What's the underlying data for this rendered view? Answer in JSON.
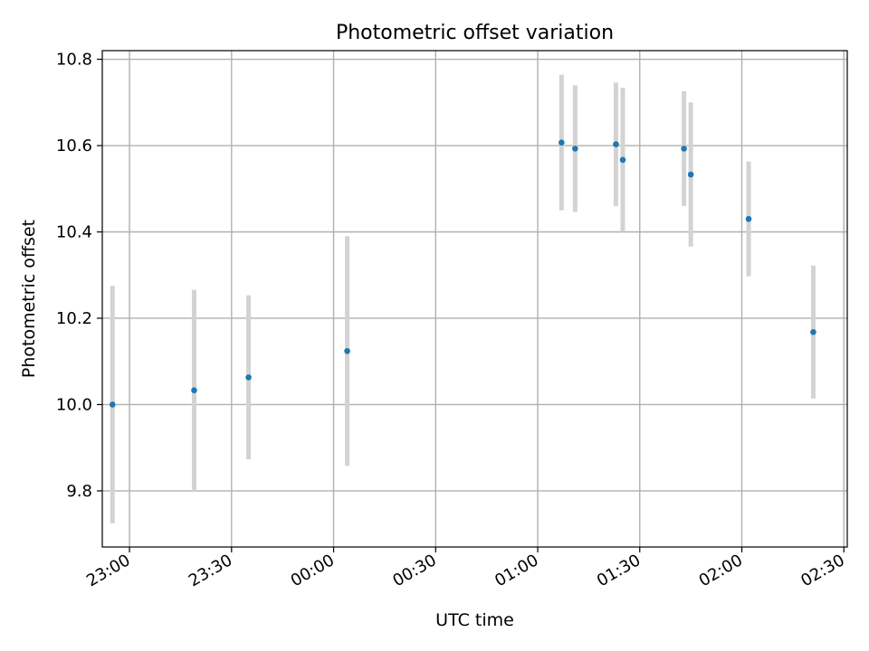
{
  "chart_data": {
    "type": "scatter",
    "title": "Photometric offset variation",
    "xlabel": "UTC time",
    "ylabel": "Photometric offset",
    "x_unit": "time of day (UTC), timestamps crossing midnight",
    "xlim": [
      "22:52",
      "02:31 next day"
    ],
    "ylim": [
      9.67,
      10.82
    ],
    "grid": true,
    "x_ticks": [
      "23:00",
      "23:30",
      "00:00",
      "00:30",
      "01:00",
      "01:30",
      "02:00",
      "02:30"
    ],
    "y_ticks": [
      "9.8",
      "10.0",
      "10.2",
      "10.4",
      "10.6",
      "10.8"
    ],
    "series": [
      {
        "marker_color": "#1f77b4",
        "errorbar_color": "#d3d3d3",
        "points": [
          {
            "x": "22:55",
            "y": 10.0,
            "yerr": 0.275
          },
          {
            "x": "23:19",
            "y": 10.033,
            "yerr": 0.233
          },
          {
            "x": "23:35",
            "y": 10.063,
            "yerr": 0.19
          },
          {
            "x": "00:04",
            "y": 10.124,
            "yerr": 0.266
          },
          {
            "x": "01:07",
            "y": 10.607,
            "yerr": 0.157
          },
          {
            "x": "01:11",
            "y": 10.593,
            "yerr": 0.147
          },
          {
            "x": "01:23",
            "y": 10.603,
            "yerr": 0.143
          },
          {
            "x": "01:25",
            "y": 10.567,
            "yerr": 0.167
          },
          {
            "x": "01:43",
            "y": 10.593,
            "yerr": 0.133
          },
          {
            "x": "01:45",
            "y": 10.533,
            "yerr": 0.167
          },
          {
            "x": "02:02",
            "y": 10.43,
            "yerr": 0.133
          },
          {
            "x": "02:21",
            "y": 10.168,
            "yerr": 0.154
          }
        ]
      }
    ]
  }
}
